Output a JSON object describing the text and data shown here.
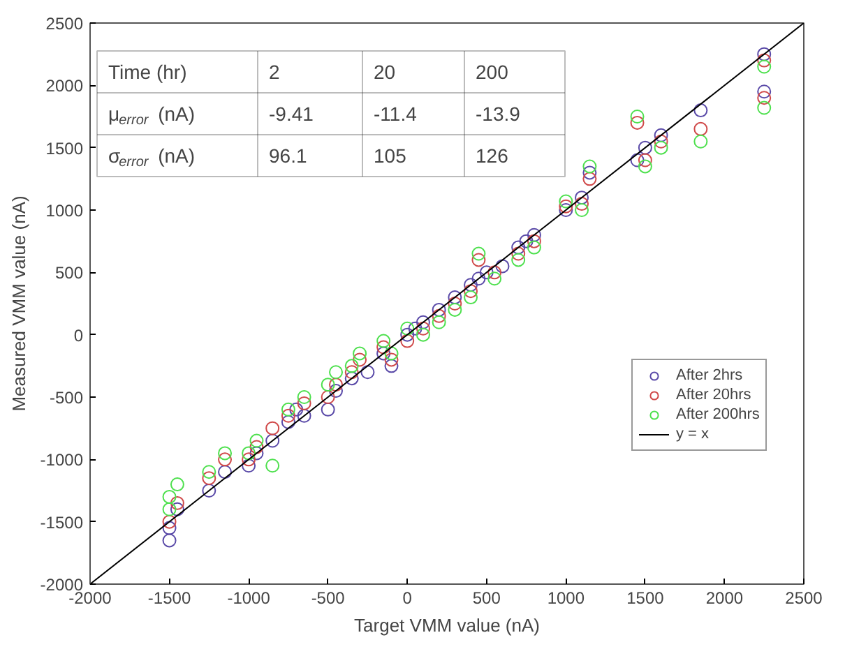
{
  "chart_data": {
    "type": "scatter",
    "xlabel": "Target VMM value (nA)",
    "ylabel": "Measured VMM value (nA)",
    "xlim": [
      -2000,
      2500
    ],
    "ylim": [
      -2000,
      2500
    ],
    "xticks": [
      -2000,
      -1500,
      -1000,
      -500,
      0,
      500,
      1000,
      1500,
      2000,
      2500
    ],
    "yticks": [
      -2000,
      -1500,
      -1000,
      -500,
      0,
      500,
      1000,
      1500,
      2000,
      2500
    ],
    "grid": false,
    "legend": "right",
    "marker": "circle",
    "annotations": [
      "Time (hr)",
      "2",
      "20",
      "200",
      "μ$_{error}$(nA)",
      "-9.41",
      "-11.4",
      "-13.9",
      "σ$_{error}$(nA)",
      "96.1",
      "105",
      "126"
    ],
    "series": [
      {
        "name": "After 2hrs",
        "color": "#5a4aa8",
        "x": [
          -1500,
          -1500,
          -1450,
          -1250,
          -1150,
          -1000,
          -950,
          -850,
          -750,
          -700,
          -650,
          -500,
          -450,
          -350,
          -250,
          -150,
          -100,
          0,
          50,
          100,
          200,
          300,
          400,
          450,
          500,
          600,
          700,
          750,
          800,
          1000,
          1100,
          1150,
          1450,
          1500,
          1600,
          1850,
          2250,
          2250
        ],
        "values": [
          -1650,
          -1550,
          -1400,
          -1250,
          -1100,
          -1050,
          -950,
          -850,
          -700,
          -600,
          -650,
          -600,
          -450,
          -350,
          -300,
          -150,
          -250,
          0,
          50,
          100,
          200,
          300,
          400,
          450,
          500,
          550,
          700,
          750,
          800,
          1000,
          1100,
          1300,
          1400,
          1500,
          1600,
          1800,
          2250,
          1950
        ]
      },
      {
        "name": "After 20hrs",
        "color": "#d04a4a",
        "x": [
          -1500,
          -1450,
          -1250,
          -1150,
          -1000,
          -950,
          -850,
          -750,
          -650,
          -500,
          -450,
          -350,
          -300,
          -150,
          -100,
          0,
          100,
          200,
          300,
          400,
          450,
          550,
          700,
          800,
          1000,
          1100,
          1150,
          1450,
          1500,
          1600,
          1850,
          2250,
          2250
        ],
        "values": [
          -1500,
          -1350,
          -1150,
          -1000,
          -1000,
          -900,
          -750,
          -650,
          -550,
          -500,
          -400,
          -300,
          -200,
          -100,
          -200,
          -50,
          50,
          150,
          250,
          350,
          600,
          500,
          650,
          750,
          1030,
          1050,
          1250,
          1700,
          1400,
          1550,
          1650,
          2200,
          1900
        ]
      },
      {
        "name": "After 200hrs",
        "color": "#4ee04e",
        "x": [
          -1500,
          -1500,
          -1450,
          -1250,
          -1150,
          -1000,
          -950,
          -850,
          -750,
          -650,
          -500,
          -450,
          -350,
          -300,
          -150,
          -100,
          0,
          100,
          200,
          300,
          400,
          450,
          550,
          700,
          800,
          1000,
          1100,
          1150,
          1450,
          1500,
          1600,
          1850,
          2250,
          2250
        ],
        "values": [
          -1400,
          -1300,
          -1200,
          -1100,
          -950,
          -950,
          -850,
          -1050,
          -600,
          -500,
          -400,
          -300,
          -250,
          -150,
          -50,
          -150,
          50,
          0,
          100,
          200,
          300,
          650,
          450,
          600,
          700,
          1070,
          1000,
          1350,
          1750,
          1350,
          1500,
          1550,
          2150,
          1820
        ]
      },
      {
        "name": "y = x",
        "type": "line",
        "marker": "none",
        "color": "#000000",
        "x": [
          -2000,
          2500
        ],
        "values": [
          -2000,
          2500
        ]
      }
    ]
  }
}
